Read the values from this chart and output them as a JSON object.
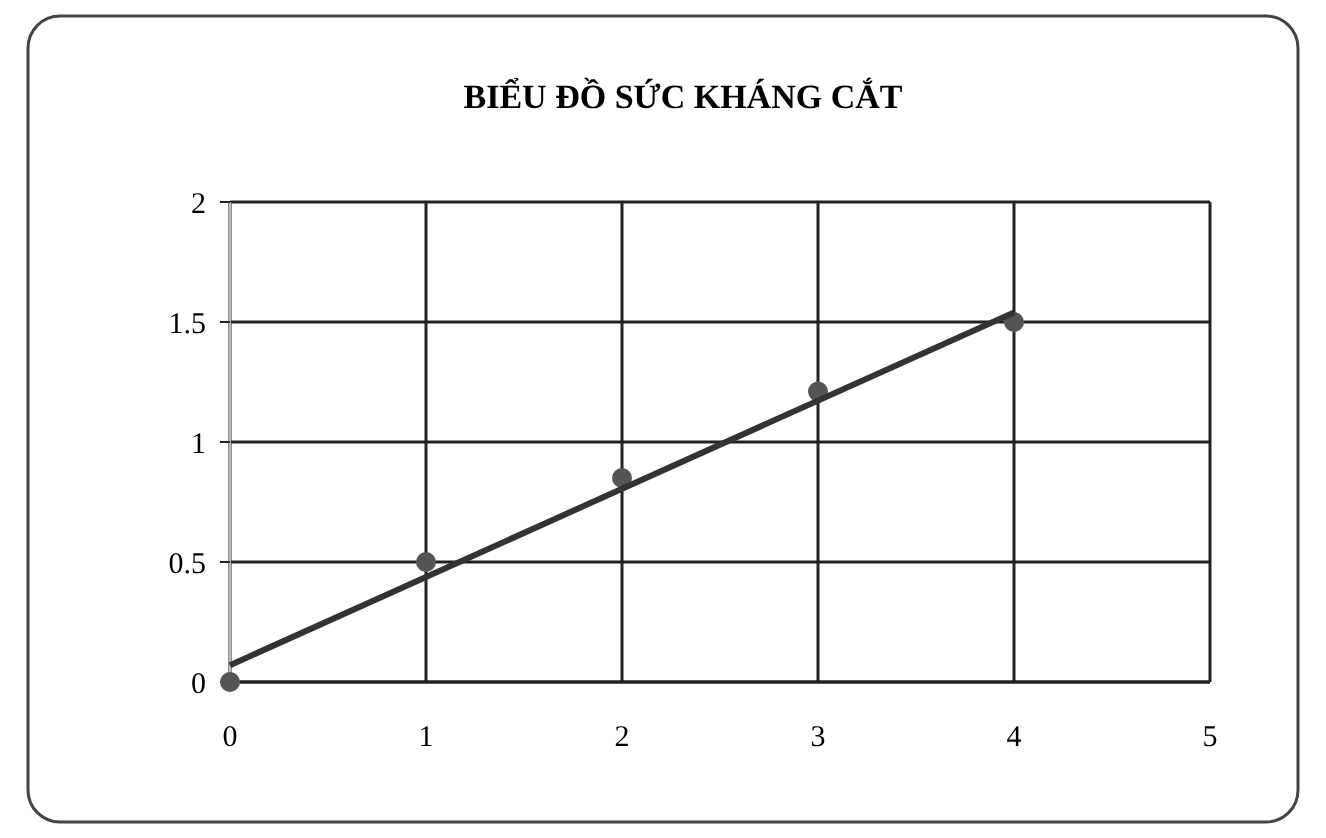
{
  "chart_data": {
    "type": "scatter",
    "title": "BIỂU ĐỒ SỨC KHÁNG CẮT",
    "xlim": [
      0,
      5
    ],
    "xticks": [
      0,
      1,
      2,
      3,
      4,
      5
    ],
    "ylim": [
      0,
      2
    ],
    "yticks": [
      0,
      0.5,
      1,
      1.5,
      2
    ],
    "grid": true,
    "series": [
      {
        "color": "#555555",
        "marker": "circle",
        "x": [
          0,
          1,
          2,
          3,
          4
        ],
        "values": [
          0,
          0.5,
          0.85,
          1.21,
          1.5
        ]
      },
      {
        "type": "line",
        "color": "#333333",
        "marker": "none",
        "x": [
          0,
          4
        ],
        "values": [
          0.07,
          1.54
        ]
      }
    ]
  }
}
